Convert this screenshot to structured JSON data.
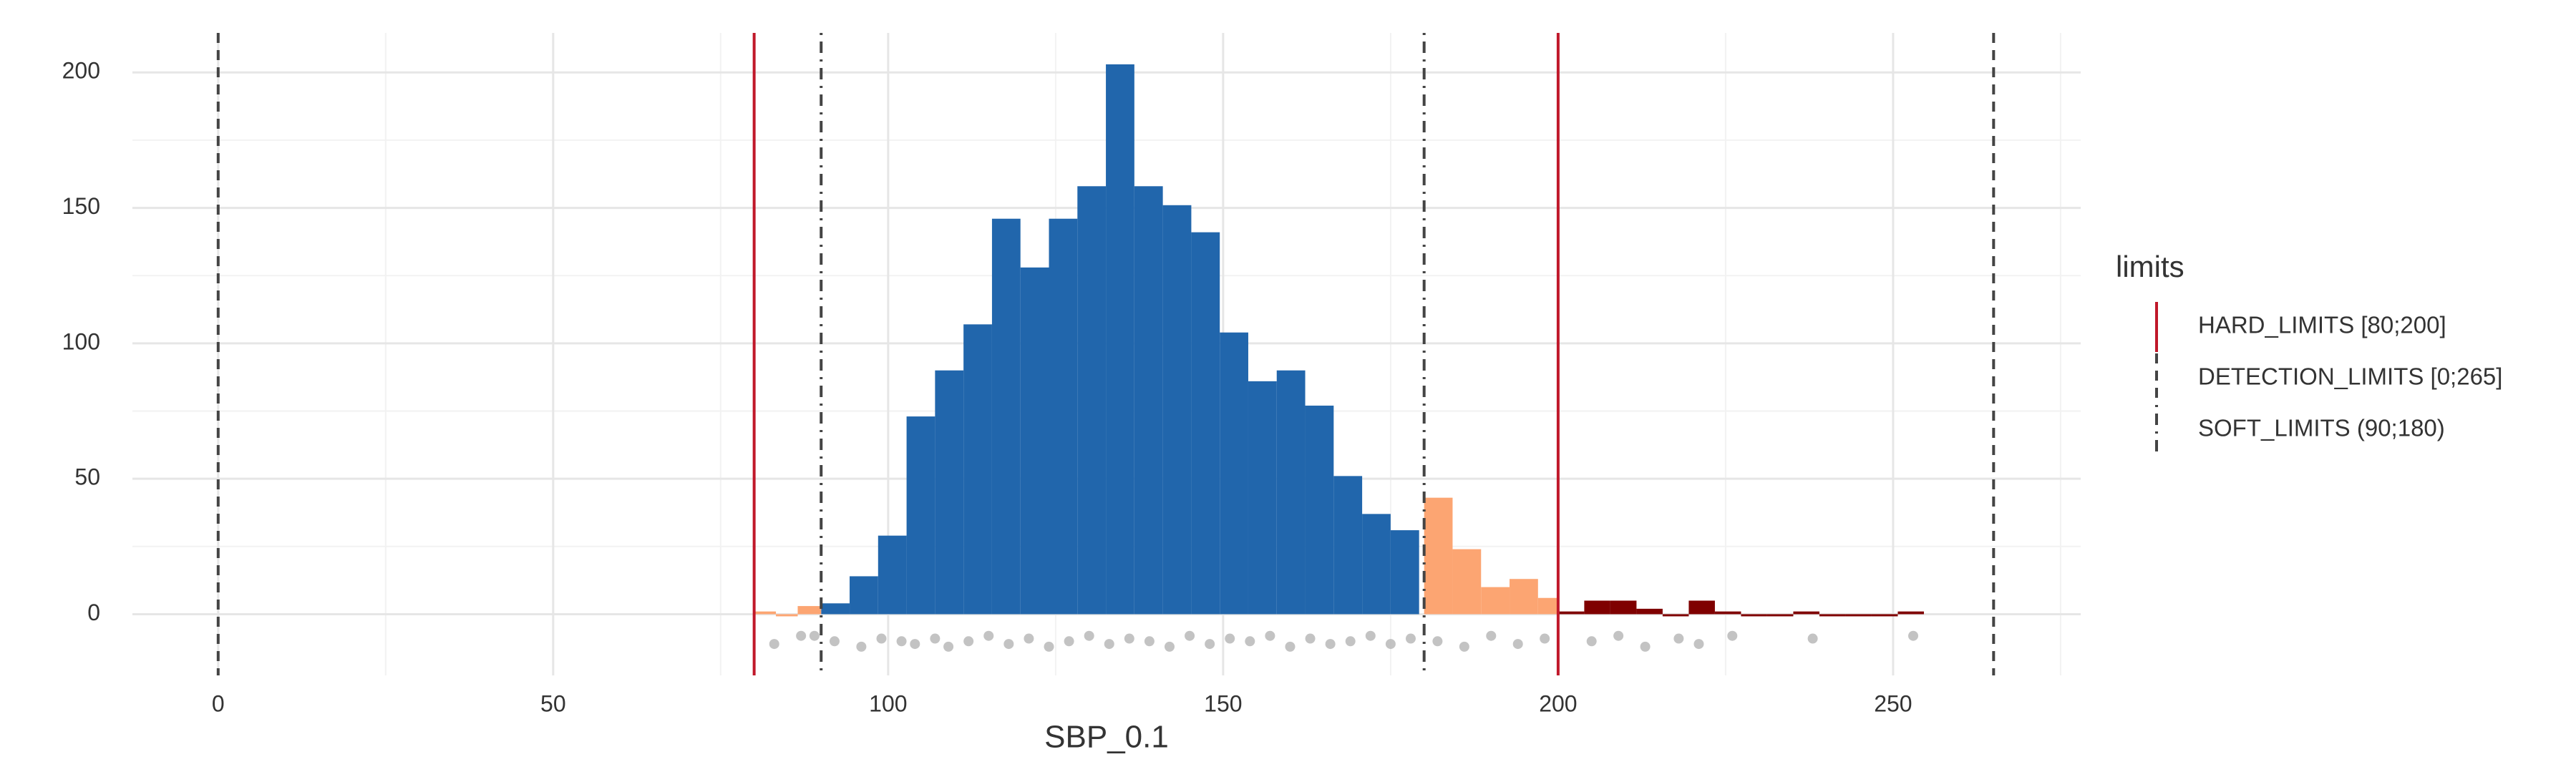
{
  "chart_data": {
    "type": "histogram",
    "x_label": "SBP_0.1",
    "xlim": [
      -12.8,
      278
    ],
    "ylim": [
      -22.6,
      214.6
    ],
    "xticks": [
      0,
      50,
      100,
      150,
      200,
      250
    ],
    "yticks": [
      0,
      50,
      100,
      150,
      200
    ],
    "x_minor_ticks": [
      25,
      75,
      125,
      175,
      225,
      275
    ],
    "y_minor_ticks": [
      25,
      75,
      125,
      175
    ],
    "grid": true,
    "series": [
      {
        "color": "#2166ac",
        "bins": [
          90,
          94.25,
          98.5,
          102.75,
          107,
          111.25,
          115.5,
          119.75,
          124,
          128.25,
          132.5,
          136.75,
          141,
          145.25,
          149.5,
          153.75,
          158,
          162.25,
          166.5,
          170.75,
          175,
          179.25
        ],
        "values": [
          4,
          14,
          29,
          73,
          90,
          107,
          146,
          128,
          146,
          158,
          203,
          158,
          151,
          141,
          104,
          86,
          90,
          77,
          51,
          37,
          31
        ]
      },
      {
        "color": "#fca572",
        "bins": [
          80,
          83.25,
          86.5,
          90
        ],
        "values": [
          1,
          0,
          3
        ]
      },
      {
        "color": "#fca572",
        "bins": [
          180,
          184.25,
          188.5,
          192.75,
          197,
          200
        ],
        "values": [
          43,
          24,
          10,
          13,
          6
        ]
      },
      {
        "color": "#7f0000",
        "bins": [
          200,
          203.9,
          207.8,
          211.7,
          215.6,
          219.5,
          223.4,
          227.3,
          231.2,
          235.1,
          239,
          242.9,
          246.8,
          250.7,
          254.6
        ],
        "values": [
          1,
          5,
          5,
          2,
          0,
          5,
          1,
          0,
          0,
          1,
          0,
          0,
          0,
          1
        ]
      }
    ],
    "points": {
      "color": "#b4b4b4",
      "x": [
        83,
        87,
        89,
        92,
        96,
        99,
        102,
        104,
        107,
        109,
        112,
        115,
        118,
        121,
        124,
        127,
        130,
        133,
        136,
        139,
        142,
        145,
        148,
        151,
        154,
        157,
        160,
        163,
        166,
        169,
        172,
        175,
        178,
        182,
        186,
        190,
        194,
        198,
        205,
        209,
        213,
        218,
        221,
        226,
        238,
        253
      ],
      "y": [
        -11,
        -8,
        -8,
        -10,
        -12,
        -9,
        -10,
        -11,
        -9,
        -12,
        -10,
        -8,
        -11,
        -9,
        -12,
        -10,
        -8,
        -11,
        -9,
        -10,
        -12,
        -8,
        -11,
        -9,
        -10,
        -8,
        -12,
        -9,
        -11,
        -10,
        -8,
        -11,
        -9,
        -10,
        -12,
        -8,
        -11,
        -9,
        -10,
        -8,
        -12,
        -9,
        -11,
        -8,
        -9,
        -8
      ]
    },
    "vlines": [
      {
        "name": "HARD_LIMITS [80;200]",
        "color": "#c0182a",
        "dash": "solid",
        "values": [
          80,
          200
        ]
      },
      {
        "name": "DETECTION_LIMITS [0;265]",
        "color": "#444444",
        "dash": "dashed",
        "values": [
          0,
          265
        ]
      },
      {
        "name": "SOFT_LIMITS (90;180)",
        "color": "#444444",
        "dash": "dotdash",
        "values": [
          90,
          180
        ]
      }
    ],
    "legend_title": "limits",
    "legend": "right"
  }
}
